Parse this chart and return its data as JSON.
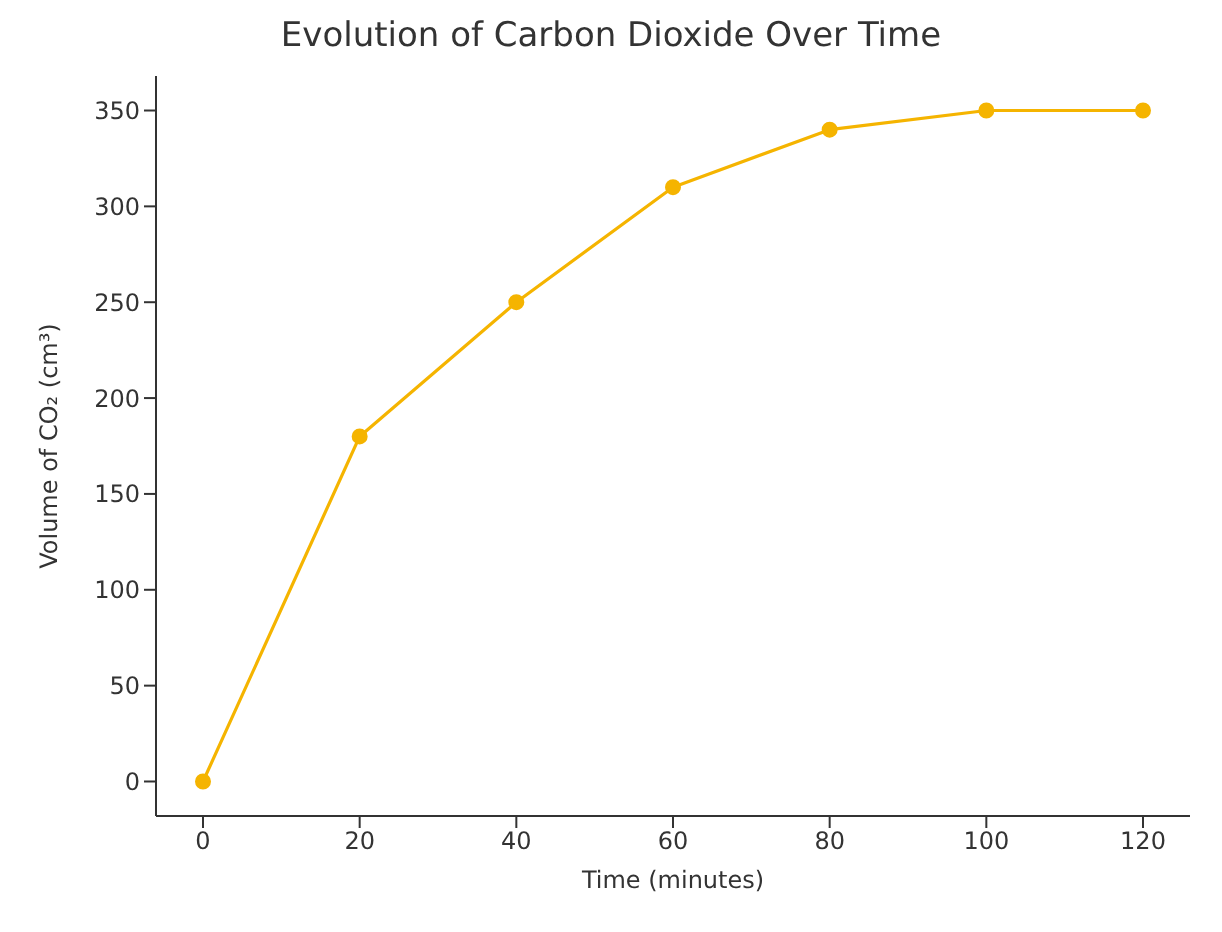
{
  "chart_data": {
    "type": "line",
    "title": "Evolution of Carbon Dioxide Over Time",
    "xlabel": "Time (minutes)",
    "ylabel": "Volume of CO₂ (cm³)",
    "x": [
      0,
      20,
      40,
      60,
      80,
      100,
      120
    ],
    "series": [
      {
        "color": "#f5b400",
        "values": [
          0,
          180,
          250,
          310,
          340,
          350,
          350
        ]
      }
    ],
    "xlim": [
      -6,
      126
    ],
    "xticks": [
      0,
      20,
      40,
      60,
      80,
      100,
      120
    ],
    "ylim": [
      -18,
      368
    ],
    "yticks": [
      0,
      50,
      100,
      150,
      200,
      250,
      300,
      350
    ],
    "marker": "circle",
    "line_style": "solid",
    "grid": false,
    "legend": false
  }
}
